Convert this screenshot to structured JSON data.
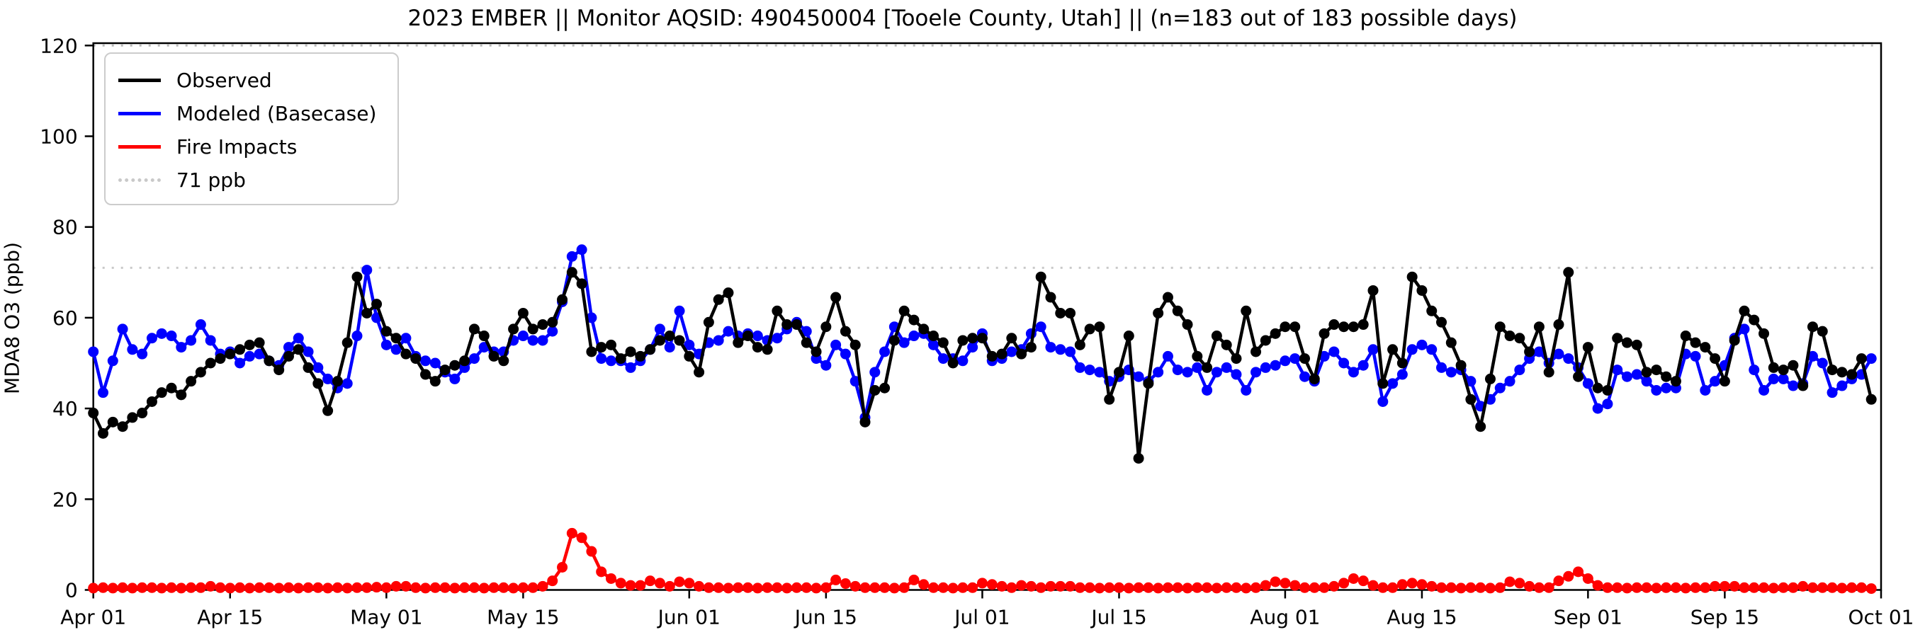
{
  "title": "2023 EMBER || Monitor AQSID: 490450004 [Tooele County, Utah] || (n=183 out of 183 possible days)",
  "y_axis": {
    "label": "MDA8 O3 (ppb)",
    "ticks": [
      0,
      20,
      40,
      60,
      80,
      100,
      120
    ],
    "range": [
      0,
      120
    ]
  },
  "x_axis": {
    "ticks": [
      {
        "label": "Apr 01",
        "day": 0
      },
      {
        "label": "Apr 15",
        "day": 14
      },
      {
        "label": "May 01",
        "day": 30
      },
      {
        "label": "May 15",
        "day": 44
      },
      {
        "label": "Jun 01",
        "day": 61
      },
      {
        "label": "Jun 15",
        "day": 75
      },
      {
        "label": "Jul 01",
        "day": 91
      },
      {
        "label": "Jul 15",
        "day": 105
      },
      {
        "label": "Aug 01",
        "day": 122
      },
      {
        "label": "Aug 15",
        "day": 136
      },
      {
        "label": "Sep 01",
        "day": 153
      },
      {
        "label": "Sep 15",
        "day": 167
      },
      {
        "label": "Oct 01",
        "day": 183
      }
    ]
  },
  "legend": {
    "items": [
      {
        "label": "Observed",
        "color": "#000000",
        "style": "solid"
      },
      {
        "label": "Modeled (Basecase)",
        "color": "#0000ff",
        "style": "solid"
      },
      {
        "label": "Fire Impacts",
        "color": "#ff0000",
        "style": "solid"
      },
      {
        "label": "71 ppb",
        "color": "#c9c9c9",
        "style": "dotted"
      }
    ]
  },
  "threshold": {
    "value": 71,
    "label": "71 ppb",
    "color": "#c9c9c9"
  },
  "chart_data": {
    "type": "line",
    "title": "2023 EMBER || Monitor AQSID: 490450004 [Tooele County, Utah] || (n=183 out of 183 possible days)",
    "xlabel": "",
    "ylabel": "MDA8 O3 (ppb)",
    "ylim": [
      0,
      120
    ],
    "x_start_date": "Apr 01",
    "x_end_date": "Sep 30",
    "n_days": 183,
    "grid": false,
    "legend_position": "upper left",
    "threshold_line": 71,
    "series": [
      {
        "name": "Observed",
        "color": "#000000",
        "values": [
          39,
          34.5,
          37,
          36,
          38,
          39,
          41.5,
          43.5,
          44.5,
          43,
          46,
          48,
          50,
          51,
          52,
          53,
          54,
          54.5,
          50.5,
          48.5,
          51.5,
          53,
          49,
          45.5,
          39.5,
          46,
          54.5,
          69,
          61,
          63,
          57,
          55.5,
          52,
          51,
          47.5,
          46,
          48.5,
          49.5,
          50.5,
          57.5,
          56,
          51.5,
          50.5,
          57.5,
          61,
          57.5,
          58.5,
          59,
          64,
          70,
          67.5,
          52.5,
          53.5,
          54,
          51,
          52.5,
          51.5,
          53,
          55,
          56,
          55,
          51.5,
          48,
          59,
          64,
          65.5,
          54.5,
          56,
          53.5,
          53,
          61.5,
          58.5,
          58.5,
          54.5,
          52.5,
          58,
          64.5,
          57,
          54,
          37,
          44,
          44.5,
          55,
          61.5,
          59.5,
          57.5,
          56,
          54.5,
          50,
          55,
          55.5,
          55.5,
          51.5,
          52,
          55.5,
          52,
          53.5,
          69,
          64.5,
          61,
          61,
          54,
          57.5,
          58,
          42,
          48,
          56,
          29,
          45.5,
          61,
          64.5,
          61.5,
          58.5,
          51.5,
          49,
          56,
          54,
          51,
          61.5,
          52.5,
          55,
          56.5,
          58,
          58,
          51,
          46.5,
          56.5,
          58.5,
          58,
          58,
          58.5,
          66,
          45.5,
          53,
          50,
          69,
          66,
          61.5,
          59,
          54.5,
          49.5,
          42,
          36,
          46.5,
          58,
          56,
          55.5,
          52.5,
          58,
          48,
          58.5,
          70,
          47,
          53.5,
          44.5,
          44,
          55.5,
          54.5,
          54,
          48,
          48.5,
          47,
          46,
          56,
          54.5,
          53.5,
          51,
          46,
          55,
          61.5,
          59.5,
          56.5,
          49,
          48.5,
          49.5,
          45,
          58,
          57,
          48.5,
          48,
          47.5,
          51,
          42
        ]
      },
      {
        "name": "Modeled (Basecase)",
        "color": "#0000ff",
        "values": [
          52.5,
          43.5,
          50.5,
          57.5,
          53,
          52,
          55.5,
          56.5,
          56,
          53.5,
          55,
          58.5,
          55,
          52,
          52.5,
          50,
          51.5,
          52,
          50.5,
          49.5,
          53.5,
          55.5,
          52.5,
          49,
          46.5,
          44.5,
          45.5,
          56,
          70.5,
          60,
          54,
          53,
          55.5,
          51.5,
          50.5,
          50,
          48,
          46.5,
          49,
          51,
          53.5,
          52.5,
          52.5,
          55,
          56,
          55,
          55,
          57,
          63.5,
          73.5,
          75,
          60,
          51,
          50.5,
          50.5,
          49,
          50.5,
          53,
          57.5,
          53.5,
          61.5,
          54,
          52,
          54.5,
          55,
          57,
          56,
          56.5,
          56,
          55,
          55.5,
          57.5,
          59,
          57,
          51,
          49.5,
          54,
          52,
          46,
          38,
          48,
          52.5,
          58,
          54.5,
          56,
          56.5,
          54,
          51,
          51,
          50.5,
          53.5,
          56.5,
          50.5,
          51,
          52.5,
          53,
          56.5,
          58,
          53.5,
          53,
          52.5,
          49,
          48.5,
          48,
          46,
          47,
          48.5,
          47,
          46,
          48,
          51.5,
          48.5,
          48,
          49,
          44,
          48,
          49,
          47.5,
          44,
          48,
          49,
          49.5,
          50.5,
          51,
          47,
          46,
          51.5,
          52.5,
          50,
          48,
          49.5,
          53,
          41.5,
          45.5,
          47.5,
          53,
          54,
          53,
          49,
          48,
          48.5,
          46,
          40.5,
          42,
          44.5,
          46,
          48.5,
          51,
          52.5,
          50,
          52,
          51,
          49,
          45.5,
          40,
          41,
          48.5,
          47,
          47.5,
          46,
          44,
          44.5,
          44.5,
          52,
          51.5,
          44,
          46,
          49.5,
          55.5,
          57.5,
          48.5,
          44,
          46.5,
          46.5,
          45,
          45.5,
          51.5,
          50,
          43.5,
          45,
          46.5,
          47.5,
          51
        ]
      },
      {
        "name": "Fire Impacts",
        "color": "#ff0000",
        "values": [
          0.4,
          0.5,
          0.4,
          0.5,
          0.4,
          0.5,
          0.5,
          0.4,
          0.5,
          0.4,
          0.5,
          0.5,
          0.8,
          0.5,
          0.4,
          0.5,
          0.4,
          0.5,
          0.5,
          0.4,
          0.5,
          0.4,
          0.5,
          0.5,
          0.4,
          0.5,
          0.4,
          0.5,
          0.5,
          0.6,
          0.5,
          0.8,
          0.8,
          0.5,
          0.4,
          0.5,
          0.5,
          0.4,
          0.5,
          0.5,
          0.4,
          0.5,
          0.5,
          0.4,
          0.5,
          0.5,
          0.8,
          2,
          5,
          12.5,
          11.5,
          8.5,
          4,
          2.5,
          1.5,
          1,
          1,
          2,
          1.5,
          0.8,
          1.8,
          1.5,
          0.8,
          0.5,
          0.5,
          0.4,
          0.5,
          0.5,
          0.4,
          0.5,
          0.5,
          0.4,
          0.5,
          0.5,
          0.4,
          0.5,
          2.2,
          1.4,
          0.8,
          0.5,
          0.5,
          0.5,
          0.4,
          0.5,
          2.2,
          1.2,
          0.5,
          0.5,
          0.4,
          0.5,
          0.5,
          1.5,
          1.2,
          0.8,
          0.5,
          1,
          0.8,
          0.5,
          0.8,
          0.8,
          0.8,
          0.5,
          0.5,
          0.4,
          0.5,
          0.5,
          0.4,
          0.5,
          0.5,
          0.4,
          0.5,
          0.5,
          0.4,
          0.5,
          0.5,
          0.4,
          0.5,
          0.5,
          0.4,
          0.5,
          1,
          1.8,
          1.5,
          1,
          0.5,
          0.5,
          0.5,
          0.8,
          1.5,
          2.5,
          2,
          1,
          0.5,
          0.5,
          1.2,
          1.5,
          1.2,
          0.8,
          0.5,
          0.5,
          0.4,
          0.5,
          0.5,
          0.4,
          0.5,
          1.8,
          1.5,
          0.8,
          0.5,
          0.5,
          2,
          3,
          4,
          2.5,
          1,
          0.5,
          0.5,
          0.4,
          0.5,
          0.5,
          0.4,
          0.5,
          0.5,
          0.4,
          0.5,
          0.5,
          0.8,
          0.8,
          0.8,
          0.5,
          0.5,
          0.5,
          0.4,
          0.5,
          0.5,
          0.8,
          0.5,
          0.5,
          0.5,
          0.4,
          0.5,
          0.5,
          0.3
        ]
      }
    ]
  }
}
